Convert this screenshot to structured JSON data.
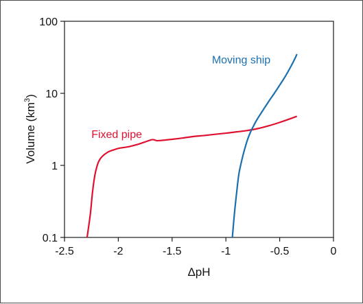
{
  "chart_data": {
    "type": "line",
    "xlabel": "ΔpH",
    "ylabel": "Volume (km³)",
    "ylabel_parts": {
      "main": "Volume (km",
      "sup": "3",
      "tail": ")"
    },
    "xlim": [
      -2.5,
      0
    ],
    "ylim": [
      0.1,
      100
    ],
    "yscale": "log",
    "grid": false,
    "x_ticks": [
      -2.5,
      -2,
      -1.5,
      -1,
      -0.5,
      0
    ],
    "x_tick_labels": [
      "-2.5",
      "-2",
      "-1.5",
      "-1",
      "-0.5",
      "0"
    ],
    "y_ticks": [
      0.1,
      1,
      10,
      100
    ],
    "y_tick_labels": [
      "0.1",
      "1",
      "10",
      "100"
    ],
    "series": [
      {
        "name": "Fixed pipe",
        "color": "#e0102f",
        "x": [
          -2.29,
          -2.26,
          -2.24,
          -2.22,
          -2.2,
          -2.18,
          -2.15,
          -2.1,
          -2.05,
          -2.0,
          -1.95,
          -1.9,
          -1.85,
          -1.8,
          -1.75,
          -1.7,
          -1.68,
          -1.66,
          -1.64,
          -1.6,
          -1.5,
          -1.4,
          -1.3,
          -1.2,
          -1.1,
          -1.0,
          -0.9,
          -0.8,
          -0.7,
          -0.6,
          -0.5,
          -0.4,
          -0.34
        ],
        "y": [
          0.1,
          0.21,
          0.42,
          0.7,
          0.95,
          1.15,
          1.33,
          1.52,
          1.63,
          1.72,
          1.77,
          1.82,
          1.9,
          2.0,
          2.12,
          2.25,
          2.28,
          2.25,
          2.2,
          2.22,
          2.3,
          2.4,
          2.52,
          2.6,
          2.7,
          2.8,
          2.92,
          3.05,
          3.25,
          3.55,
          3.95,
          4.45,
          4.8
        ]
      },
      {
        "name": "Moving ship",
        "color": "#1a6faf",
        "x": [
          -0.94,
          -0.92,
          -0.9,
          -0.88,
          -0.86,
          -0.84,
          -0.82,
          -0.8,
          -0.78,
          -0.76,
          -0.74,
          -0.72,
          -0.7,
          -0.65,
          -0.6,
          -0.55,
          -0.5,
          -0.45,
          -0.4,
          -0.36,
          -0.34
        ],
        "y": [
          0.1,
          0.22,
          0.42,
          0.75,
          1.05,
          1.4,
          1.8,
          2.25,
          2.7,
          3.15,
          3.6,
          4.1,
          4.6,
          6.0,
          7.8,
          10.0,
          13.0,
          17.0,
          23.0,
          30.0,
          35.0
        ]
      }
    ],
    "annotations": [
      {
        "text": "Fixed pipe",
        "series": 0,
        "x": -2.25,
        "y": 2.4
      },
      {
        "text": "Moving ship",
        "series": 1,
        "x": -1.13,
        "y": 26
      }
    ]
  }
}
